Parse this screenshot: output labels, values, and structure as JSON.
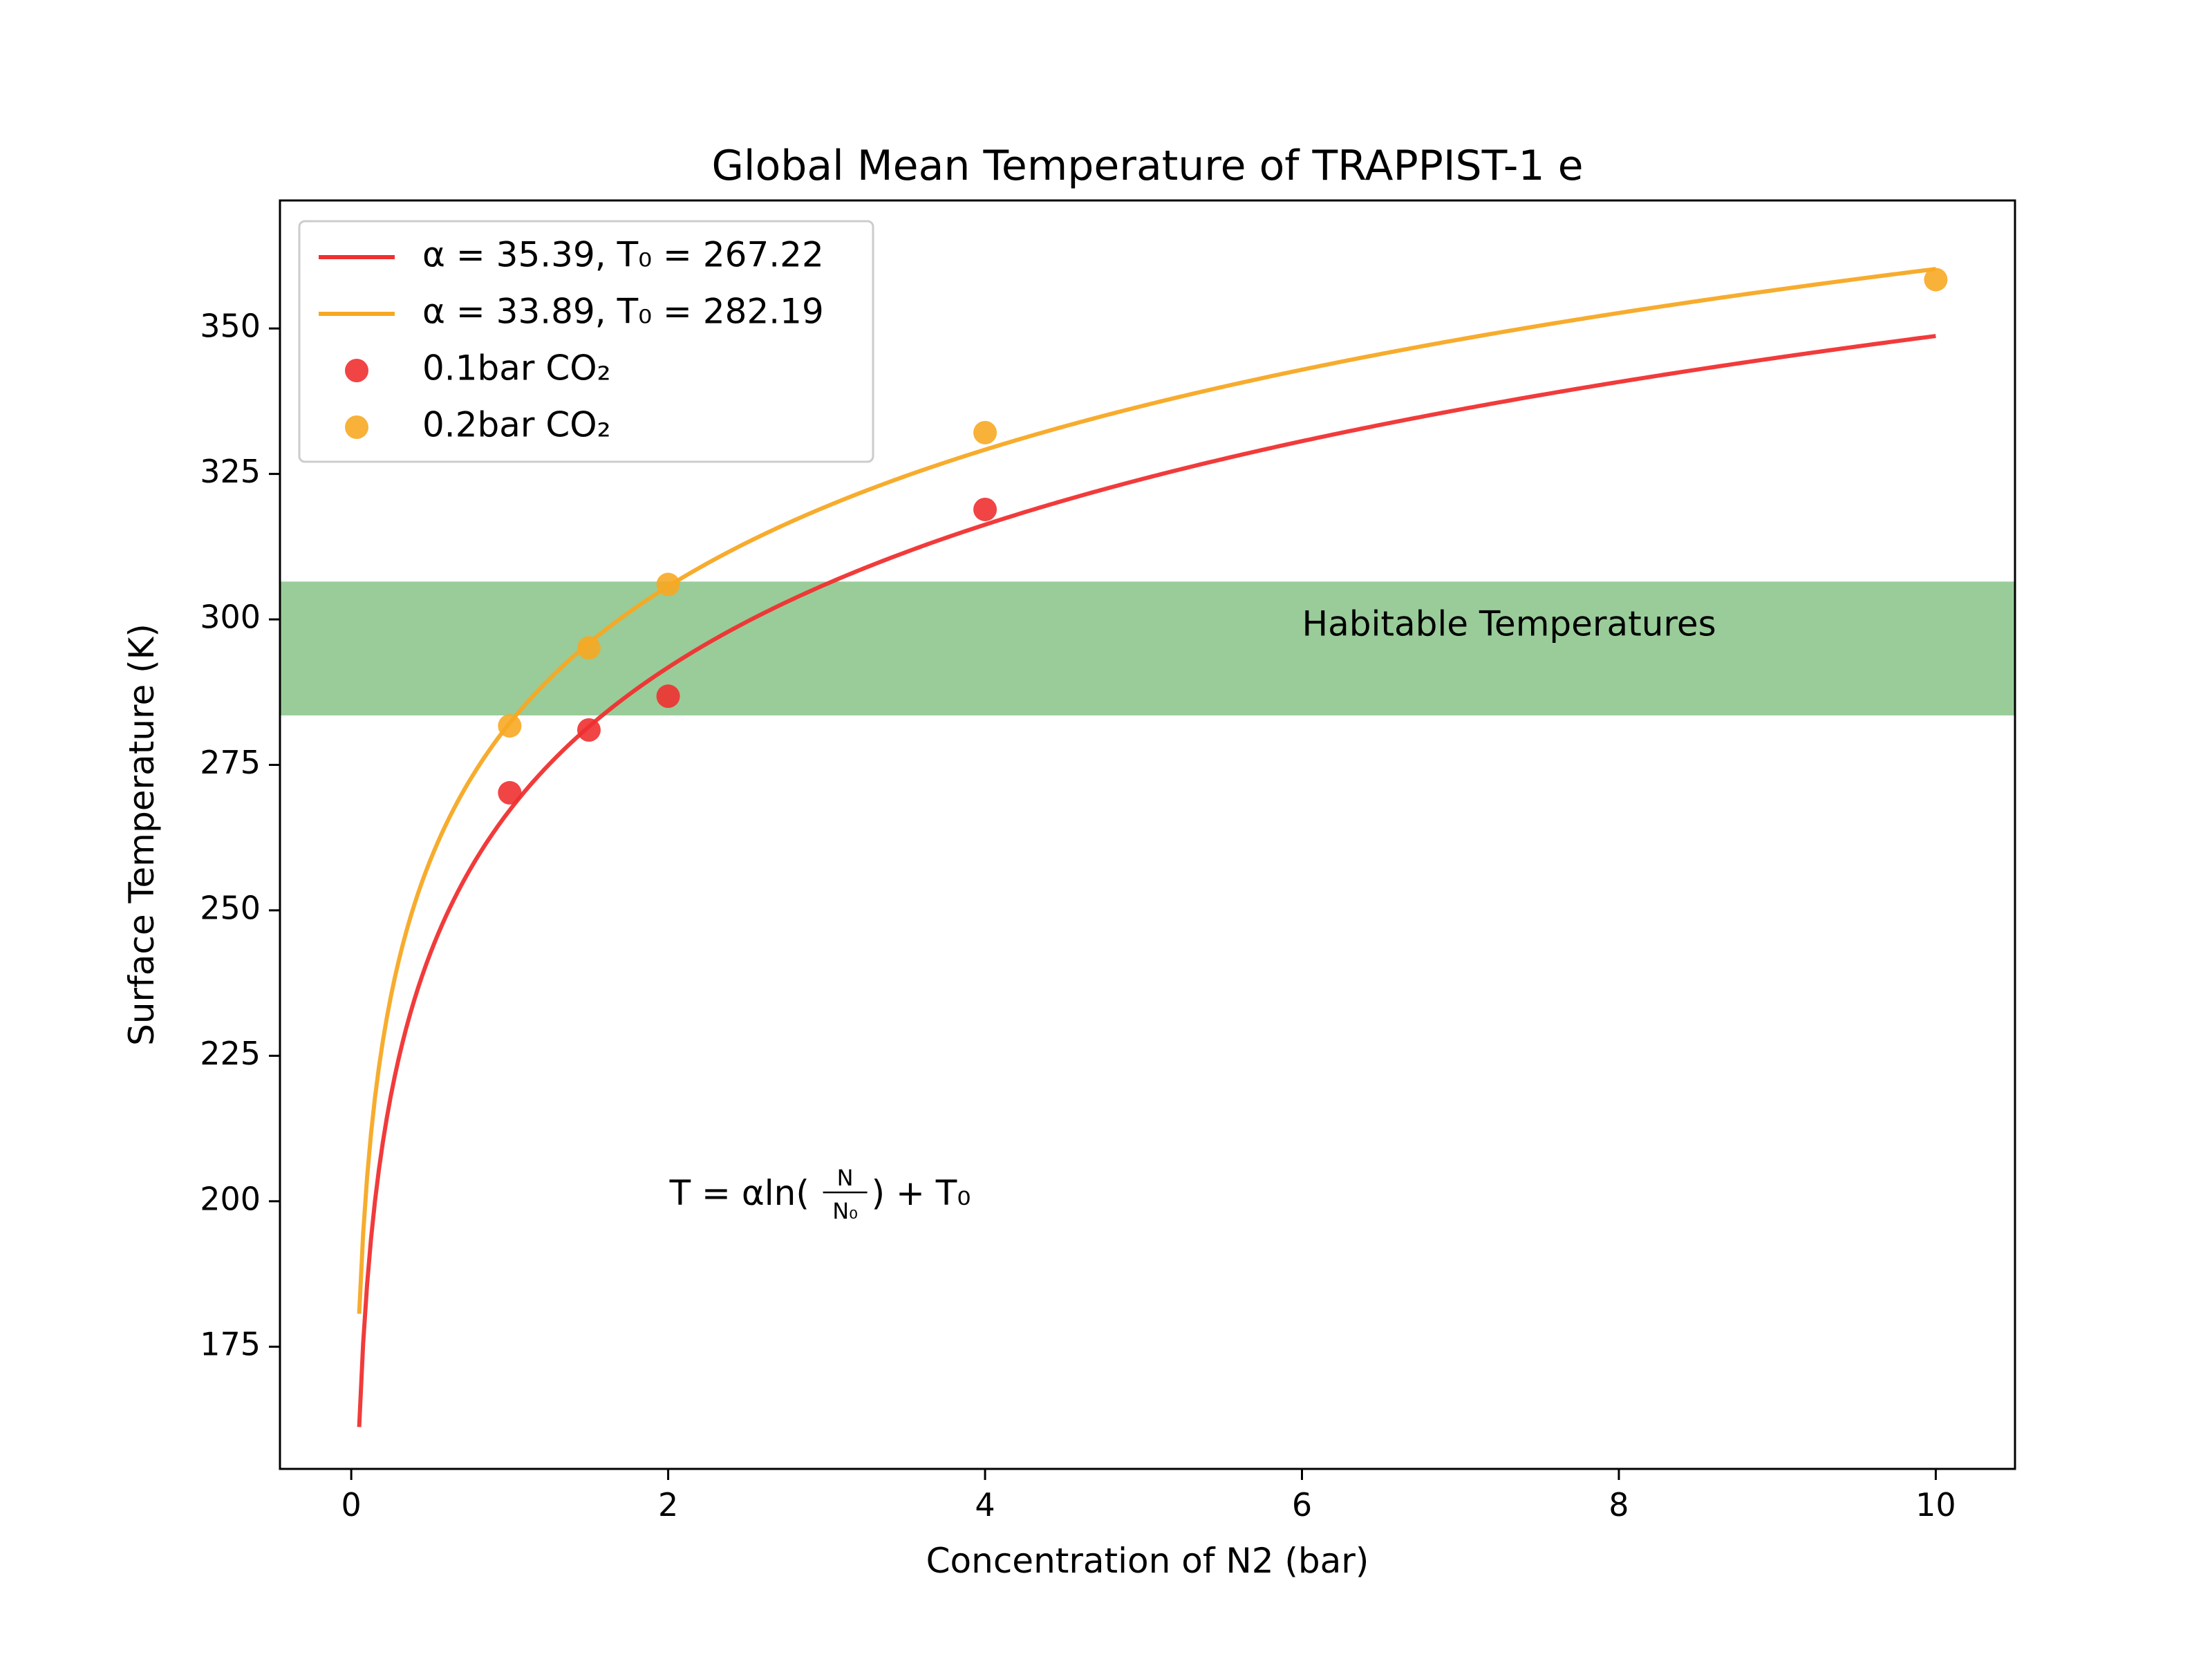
{
  "chart_data": {
    "type": "line",
    "title": "Global Mean Temperature of TRAPPIST-1 e",
    "xlabel": "Concentration of N2 (bar)",
    "ylabel": "Surface Temperature (K)",
    "xlim": [
      -0.45,
      10.5
    ],
    "ylim": [
      154,
      372
    ],
    "xticks": [
      0,
      2,
      4,
      6,
      8,
      10
    ],
    "yticks": [
      175,
      200,
      225,
      250,
      275,
      300,
      325,
      350
    ],
    "grid": false,
    "legend_position": "upper left",
    "habitable_band": {
      "ymin": 283.5,
      "ymax": 306.5,
      "label": "Habitable Temperatures",
      "color": "#99cc99"
    },
    "series": [
      {
        "name": "α = 35.39, T₀ = 267.22",
        "kind": "fit_line",
        "alpha": 35.39,
        "T0": 267.22,
        "x_range": [
          0.05,
          10
        ],
        "color": "#f03030"
      },
      {
        "name": "α = 33.89, T₀ = 282.19",
        "kind": "fit_line",
        "alpha": 33.89,
        "T0": 282.19,
        "x_range": [
          0.05,
          10
        ],
        "color": "#f7a823"
      },
      {
        "name": "0.1bar CO₂",
        "kind": "scatter",
        "x": [
          1,
          1.5,
          2,
          4
        ],
        "y": [
          270.2,
          281,
          286.8,
          318.9
        ],
        "color": "#f03030"
      },
      {
        "name": "0.2bar CO₂",
        "kind": "scatter",
        "x": [
          1,
          1.5,
          2,
          4,
          10
        ],
        "y": [
          281.7,
          295.1,
          306,
          332.1,
          358.4
        ],
        "color": "#f7a823"
      }
    ],
    "annotation": {
      "text_main": "T = αln(",
      "text_num": "N",
      "text_den": "N₀",
      "text_tail": ") + T₀",
      "x": 2,
      "y": 202
    }
  }
}
